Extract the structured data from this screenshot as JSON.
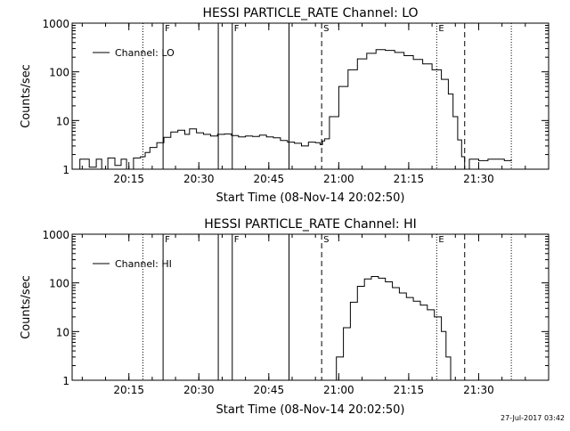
{
  "footer_timestamp": "27-Jul-2017 03:42",
  "chart_data": [
    {
      "type": "line",
      "title": "HESSI PARTICLE_RATE Channel: LO",
      "xlabel": "Start Time (08-Nov-14 20:02:50)",
      "ylabel": "Counts/sec",
      "yscale": "log",
      "ylim": [
        1,
        1000
      ],
      "xlim": [
        "20:02:50",
        "21:45:00"
      ],
      "grid": false,
      "legend": {
        "label": "Channel: LO",
        "placement": "top-left"
      },
      "x_ticks": [
        "20:15",
        "20:30",
        "20:45",
        "21:00",
        "21:15",
        "21:30"
      ],
      "y_ticks": [
        "1",
        "10",
        "100",
        "1000"
      ],
      "markers": [
        {
          "time": "20:18:00",
          "style": "dotted",
          "label": ""
        },
        {
          "time": "20:22:20",
          "style": "solid",
          "label": "F"
        },
        {
          "time": "20:34:10",
          "style": "solid",
          "label": ""
        },
        {
          "time": "20:37:10",
          "style": "solid",
          "label": "F"
        },
        {
          "time": "20:49:20",
          "style": "solid",
          "label": ""
        },
        {
          "time": "20:56:20",
          "style": "dashed",
          "label": "S"
        },
        {
          "time": "21:21:00",
          "style": "dotted",
          "label": "E"
        },
        {
          "time": "21:27:00",
          "style": "dashed",
          "label": ""
        },
        {
          "time": "21:37:00",
          "style": "dotted",
          "label": ""
        }
      ],
      "series": [
        {
          "name": "Channel: LO",
          "x": [
            "20:02:50",
            "20:04:30",
            "20:06:30",
            "20:08:00",
            "20:09:10",
            "20:10:30",
            "20:12:00",
            "20:13:20",
            "20:14:30",
            "20:16:00",
            "20:17:30",
            "20:18:30",
            "20:19:30",
            "20:21:00",
            "20:22:30",
            "20:24:00",
            "20:25:30",
            "20:27:00",
            "20:28:00",
            "20:29:30",
            "20:31:00",
            "20:32:30",
            "20:34:00",
            "20:35:30",
            "20:37:00",
            "20:38:30",
            "20:40:00",
            "20:41:30",
            "20:43:00",
            "20:44:30",
            "20:46:00",
            "20:47:30",
            "20:49:00",
            "20:50:30",
            "20:52:00",
            "20:53:30",
            "20:55:00",
            "20:56:00",
            "20:56:30",
            "20:57:00",
            "20:58:00",
            "21:00:00",
            "21:02:00",
            "21:04:00",
            "21:06:00",
            "21:08:00",
            "21:10:00",
            "21:12:00",
            "21:14:00",
            "21:16:00",
            "21:18:00",
            "21:20:00",
            "21:22:00",
            "21:23:30",
            "21:24:30",
            "21:25:30",
            "21:26:20",
            "21:27:00",
            "21:28:00",
            "21:30:00",
            "21:32:00",
            "21:34:00",
            "21:35:30",
            "21:37:00"
          ],
          "y": [
            1.0,
            1.6,
            1.1,
            1.6,
            1.0,
            1.7,
            1.2,
            1.6,
            1.0,
            1.7,
            1.8,
            2.2,
            2.8,
            3.5,
            4.5,
            5.8,
            6.3,
            5.2,
            6.7,
            5.6,
            5.2,
            4.8,
            5.2,
            5.3,
            4.9,
            4.6,
            4.8,
            4.7,
            5.0,
            4.6,
            4.4,
            3.9,
            3.6,
            3.4,
            3.0,
            3.6,
            3.5,
            3.2,
            3.8,
            4.2,
            12,
            50,
            110,
            185,
            240,
            285,
            275,
            250,
            215,
            180,
            145,
            110,
            70,
            35,
            12,
            4,
            1.8,
            1.0,
            1.6,
            1.5,
            1.6,
            1.6,
            1.5,
            1.6
          ]
        }
      ]
    },
    {
      "type": "line",
      "title": "HESSI PARTICLE_RATE Channel: HI",
      "xlabel": "Start Time (08-Nov-14 20:02:50)",
      "ylabel": "Counts/sec",
      "yscale": "log",
      "ylim": [
        1,
        1000
      ],
      "xlim": [
        "20:02:50",
        "21:45:00"
      ],
      "grid": false,
      "legend": {
        "label": "Channel: HI",
        "placement": "top-left"
      },
      "x_ticks": [
        "20:15",
        "20:30",
        "20:45",
        "21:00",
        "21:15",
        "21:30"
      ],
      "y_ticks": [
        "1",
        "10",
        "100",
        "1000"
      ],
      "markers": [
        {
          "time": "20:18:00",
          "style": "dotted",
          "label": ""
        },
        {
          "time": "20:22:20",
          "style": "solid",
          "label": "F"
        },
        {
          "time": "20:34:10",
          "style": "solid",
          "label": ""
        },
        {
          "time": "20:37:10",
          "style": "solid",
          "label": "F"
        },
        {
          "time": "20:49:20",
          "style": "solid",
          "label": ""
        },
        {
          "time": "20:56:20",
          "style": "dashed",
          "label": "S"
        },
        {
          "time": "21:21:00",
          "style": "dotted",
          "label": "E"
        },
        {
          "time": "21:27:00",
          "style": "dashed",
          "label": ""
        },
        {
          "time": "21:37:00",
          "style": "dotted",
          "label": ""
        }
      ],
      "series": [
        {
          "name": "Channel: HI",
          "x": [
            "20:58:00",
            "20:59:30",
            "21:01:00",
            "21:02:30",
            "21:04:00",
            "21:05:30",
            "21:07:00",
            "21:08:30",
            "21:10:00",
            "21:11:30",
            "21:13:00",
            "21:14:30",
            "21:16:00",
            "21:17:30",
            "21:19:00",
            "21:20:30",
            "21:22:00",
            "21:23:00",
            "21:24:00"
          ],
          "y": [
            1.0,
            3.0,
            12,
            40,
            85,
            120,
            135,
            125,
            105,
            80,
            62,
            50,
            42,
            35,
            28,
            20,
            10,
            3,
            1.0
          ]
        }
      ]
    }
  ]
}
